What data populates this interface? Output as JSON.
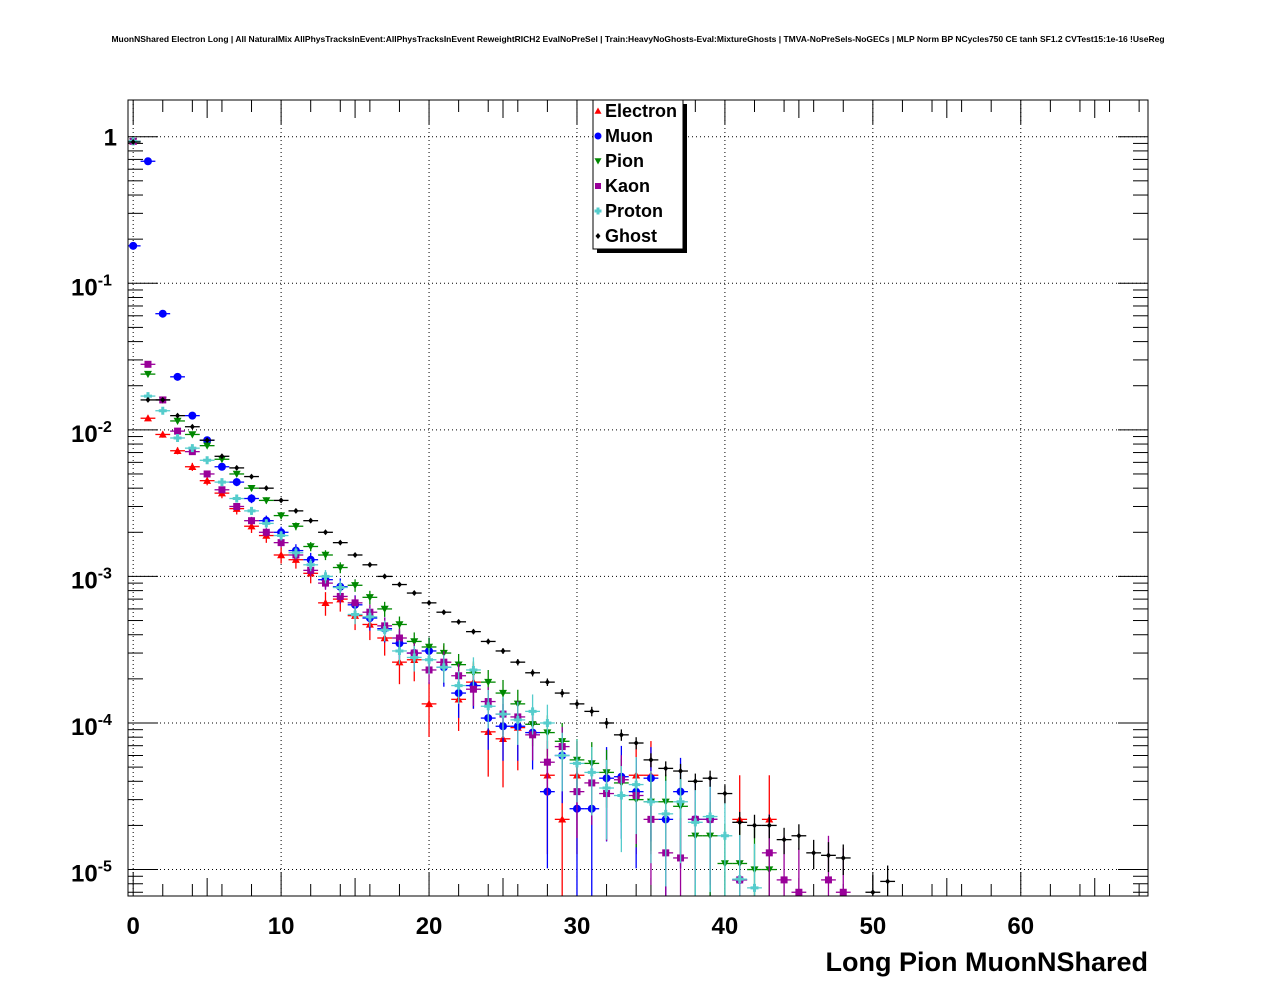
{
  "chart_data": {
    "type": "scatter",
    "title": "MuonNShared Electron Long | All NaturalMix AllPhysTracksInEvent:AllPhysTracksInEvent ReweightRICH2 EvalNoPreSel | Train:HeavyNoGhosts-Eval:MixtureGhosts | TMVA-NoPreSels-NoGECs | MLP Norm BP NCycles750 CE tanh SF1.2 CVTest15:1e-16 !UseReg",
    "xlabel": "Long Pion MuonNShared",
    "ylabel": "",
    "xlim": [
      -0.35,
      68.6
    ],
    "ylim": [
      6.6e-06,
      1.78
    ],
    "yscale": "log",
    "grid": true,
    "legend_placement": "top-center",
    "x_ticks": [
      {
        "v": 0,
        "label": "0"
      },
      {
        "v": 10,
        "label": "10"
      },
      {
        "v": 20,
        "label": "20"
      },
      {
        "v": 30,
        "label": "30"
      },
      {
        "v": 40,
        "label": "40"
      },
      {
        "v": 50,
        "label": "50"
      },
      {
        "v": 60,
        "label": "60"
      }
    ],
    "y_ticks": [
      {
        "v": 1,
        "base": "1",
        "exp": ""
      },
      {
        "v": 0.1,
        "base": "10",
        "exp": "-1"
      },
      {
        "v": 0.01,
        "base": "10",
        "exp": "-2"
      },
      {
        "v": 0.001,
        "base": "10",
        "exp": "-3"
      },
      {
        "v": 0.0001,
        "base": "10",
        "exp": "-4"
      },
      {
        "v": 1e-05,
        "base": "10",
        "exp": "-5"
      }
    ],
    "series": [
      {
        "name": "Electron",
        "color": "#ff0000",
        "marker": "triangle-up",
        "points": [
          [
            0,
            0.93
          ],
          [
            1,
            0.012
          ],
          [
            2,
            0.0093
          ],
          [
            3,
            0.0072
          ],
          [
            4,
            0.0056
          ],
          [
            5,
            0.0045
          ],
          [
            6,
            0.0037
          ],
          [
            7,
            0.0029
          ],
          [
            8,
            0.0022
          ],
          [
            9,
            0.0019
          ],
          [
            10,
            0.0014
          ],
          [
            11,
            0.0013
          ],
          [
            12,
            0.00105
          ],
          [
            13,
            0.00066
          ],
          [
            14,
            0.0007
          ],
          [
            15,
            0.00054
          ],
          [
            16,
            0.00047
          ],
          [
            17,
            0.00038
          ],
          [
            18,
            0.00026
          ],
          [
            19,
            0.00027
          ],
          [
            20,
            0.000135
          ],
          [
            21,
            0.00026
          ],
          [
            22,
            0.000145
          ],
          [
            23,
            0.00019
          ],
          [
            24,
            8.7e-05
          ],
          [
            25,
            7.8e-05
          ],
          [
            26,
            9.3e-05
          ],
          [
            28,
            4.4e-05
          ],
          [
            29,
            2.2e-05
          ],
          [
            30,
            4.4e-05
          ],
          [
            34,
            4.4e-05
          ],
          [
            35,
            4.4e-05
          ],
          [
            41,
            2.2e-05
          ],
          [
            43,
            2.2e-05
          ]
        ]
      },
      {
        "name": "Muon",
        "color": "#0000ff",
        "marker": "circle",
        "points": [
          [
            0,
            0.18
          ],
          [
            1,
            0.68
          ],
          [
            2,
            0.062
          ],
          [
            3,
            0.023
          ],
          [
            4,
            0.0125
          ],
          [
            5,
            0.0085
          ],
          [
            6,
            0.0056
          ],
          [
            7,
            0.0044
          ],
          [
            8,
            0.0034
          ],
          [
            9,
            0.0024
          ],
          [
            10,
            0.002
          ],
          [
            11,
            0.0015
          ],
          [
            12,
            0.0013
          ],
          [
            13,
            0.00095
          ],
          [
            14,
            0.00085
          ],
          [
            15,
            0.00064
          ],
          [
            16,
            0.00052
          ],
          [
            17,
            0.00044
          ],
          [
            18,
            0.00035
          ],
          [
            19,
            0.0003
          ],
          [
            20,
            0.00031
          ],
          [
            21,
            0.00024
          ],
          [
            22,
            0.00016
          ],
          [
            23,
            0.00018
          ],
          [
            24,
            0.000108
          ],
          [
            25,
            9.5e-05
          ],
          [
            26,
            9.5e-05
          ],
          [
            27,
            8.6e-05
          ],
          [
            28,
            3.4e-05
          ],
          [
            29,
            6e-05
          ],
          [
            30,
            2.6e-05
          ],
          [
            31,
            2.6e-05
          ],
          [
            32,
            4.2e-05
          ],
          [
            33,
            4.3e-05
          ],
          [
            34,
            3.4e-05
          ],
          [
            35,
            4.2e-05
          ],
          [
            36,
            2.2e-05
          ],
          [
            37,
            3.4e-05
          ],
          [
            38,
            2.2e-05
          ],
          [
            39,
            2.2e-05
          ],
          [
            41,
            8.5e-06
          ]
        ]
      },
      {
        "name": "Pion",
        "color": "#008800",
        "marker": "triangle-down",
        "points": [
          [
            0,
            0.93
          ],
          [
            1,
            0.024
          ],
          [
            2,
            0.016
          ],
          [
            3,
            0.0115
          ],
          [
            4,
            0.0093
          ],
          [
            5,
            0.0078
          ],
          [
            6,
            0.0063
          ],
          [
            7,
            0.005
          ],
          [
            8,
            0.004
          ],
          [
            9,
            0.0033
          ],
          [
            10,
            0.0026
          ],
          [
            11,
            0.0022
          ],
          [
            12,
            0.0016
          ],
          [
            13,
            0.0014
          ],
          [
            14,
            0.00115
          ],
          [
            15,
            0.00087
          ],
          [
            16,
            0.00072
          ],
          [
            17,
            0.0006
          ],
          [
            18,
            0.00047
          ],
          [
            19,
            0.00036
          ],
          [
            20,
            0.00033
          ],
          [
            21,
            0.0003
          ],
          [
            22,
            0.00025
          ],
          [
            23,
            0.00022
          ],
          [
            24,
            0.00019
          ],
          [
            25,
            0.00016
          ],
          [
            26,
            0.000135
          ],
          [
            27,
            9.8e-05
          ],
          [
            28,
            8.6e-05
          ],
          [
            29,
            7.5e-05
          ],
          [
            30,
            5.6e-05
          ],
          [
            31,
            5.3e-05
          ],
          [
            32,
            4.6e-05
          ],
          [
            33,
            3.9e-05
          ],
          [
            34,
            3e-05
          ],
          [
            35,
            2.9e-05
          ],
          [
            36,
            2.9e-05
          ],
          [
            37,
            2.7e-05
          ],
          [
            38,
            1.7e-05
          ],
          [
            39,
            1.7e-05
          ],
          [
            40,
            1.1e-05
          ],
          [
            41,
            1.1e-05
          ],
          [
            42,
            1e-05
          ],
          [
            43,
            1e-05
          ]
        ]
      },
      {
        "name": "Kaon",
        "color": "#990099",
        "marker": "square",
        "points": [
          [
            0,
            0.93
          ],
          [
            1,
            0.028
          ],
          [
            2,
            0.016
          ],
          [
            3,
            0.0098
          ],
          [
            4,
            0.0071
          ],
          [
            5,
            0.005
          ],
          [
            6,
            0.0039
          ],
          [
            7,
            0.003
          ],
          [
            8,
            0.0024
          ],
          [
            9,
            0.002
          ],
          [
            10,
            0.0017
          ],
          [
            11,
            0.0014
          ],
          [
            12,
            0.0011
          ],
          [
            13,
            0.0009
          ],
          [
            14,
            0.00073
          ],
          [
            15,
            0.00066
          ],
          [
            16,
            0.00057
          ],
          [
            17,
            0.00046
          ],
          [
            18,
            0.00038
          ],
          [
            19,
            0.0003
          ],
          [
            20,
            0.00023
          ],
          [
            21,
            0.00026
          ],
          [
            22,
            0.00021
          ],
          [
            23,
            0.00017
          ],
          [
            24,
            0.00014
          ],
          [
            25,
            0.000115
          ],
          [
            26,
            0.00011
          ],
          [
            27,
            8.3e-05
          ],
          [
            28,
            5.4e-05
          ],
          [
            29,
            6.9e-05
          ],
          [
            30,
            3.4e-05
          ],
          [
            31,
            3.9e-05
          ],
          [
            32,
            3.3e-05
          ],
          [
            33,
            4.1e-05
          ],
          [
            34,
            3.2e-05
          ],
          [
            35,
            2.2e-05
          ],
          [
            36,
            1.3e-05
          ],
          [
            37,
            1.2e-05
          ],
          [
            38,
            2.2e-05
          ],
          [
            39,
            2.2e-05
          ],
          [
            41,
            8.5e-06
          ],
          [
            43,
            1.3e-05
          ],
          [
            44,
            8.5e-06
          ],
          [
            45,
            7e-06
          ],
          [
            47,
            8.5e-06
          ],
          [
            48,
            7e-06
          ]
        ]
      },
      {
        "name": "Proton",
        "color": "#55cccc",
        "marker": "cross",
        "points": [
          [
            0,
            0.93
          ],
          [
            1,
            0.017
          ],
          [
            2,
            0.0135
          ],
          [
            3,
            0.0088
          ],
          [
            4,
            0.0075
          ],
          [
            5,
            0.0062
          ],
          [
            6,
            0.0044
          ],
          [
            7,
            0.0034
          ],
          [
            8,
            0.0028
          ],
          [
            9,
            0.0023
          ],
          [
            10,
            0.0019
          ],
          [
            11,
            0.00145
          ],
          [
            12,
            0.0012
          ],
          [
            13,
            0.001
          ],
          [
            14,
            0.00084
          ],
          [
            15,
            0.00055
          ],
          [
            16,
            0.00053
          ],
          [
            17,
            0.00043
          ],
          [
            18,
            0.00031
          ],
          [
            19,
            0.00028
          ],
          [
            20,
            0.00027
          ],
          [
            21,
            0.00024
          ],
          [
            22,
            0.00018
          ],
          [
            23,
            0.00023
          ],
          [
            24,
            0.00013
          ],
          [
            25,
            0.000115
          ],
          [
            26,
            0.000105
          ],
          [
            27,
            0.00012
          ],
          [
            28,
            0.0001
          ],
          [
            29,
            6e-05
          ],
          [
            30,
            5.3e-05
          ],
          [
            31,
            4.6e-05
          ],
          [
            32,
            3.6e-05
          ],
          [
            33,
            3.2e-05
          ],
          [
            34,
            3.8e-05
          ],
          [
            35,
            2.9e-05
          ],
          [
            36,
            2.4e-05
          ],
          [
            37,
            2.9e-05
          ],
          [
            38,
            2.1e-05
          ],
          [
            39,
            2.3e-05
          ],
          [
            40,
            1.7e-05
          ],
          [
            41,
            8.6e-06
          ],
          [
            42,
            7.5e-06
          ]
        ]
      },
      {
        "name": "Ghost",
        "color": "#000000",
        "marker": "diamond",
        "points": [
          [
            0,
            0.92
          ],
          [
            1,
            0.016
          ],
          [
            2,
            0.016
          ],
          [
            3,
            0.0125
          ],
          [
            4,
            0.0105
          ],
          [
            5,
            0.0085
          ],
          [
            6,
            0.0066
          ],
          [
            7,
            0.0055
          ],
          [
            8,
            0.0048
          ],
          [
            9,
            0.004
          ],
          [
            10,
            0.0033
          ],
          [
            11,
            0.0028
          ],
          [
            12,
            0.0024
          ],
          [
            13,
            0.002
          ],
          [
            14,
            0.0017
          ],
          [
            15,
            0.0014
          ],
          [
            16,
            0.0012
          ],
          [
            17,
            0.001
          ],
          [
            18,
            0.00088
          ],
          [
            19,
            0.00077
          ],
          [
            20,
            0.00066
          ],
          [
            21,
            0.00057
          ],
          [
            22,
            0.00049
          ],
          [
            23,
            0.00042
          ],
          [
            24,
            0.00036
          ],
          [
            25,
            0.00031
          ],
          [
            26,
            0.00026
          ],
          [
            27,
            0.00022
          ],
          [
            28,
            0.00019
          ],
          [
            29,
            0.00016
          ],
          [
            30,
            0.000135
          ],
          [
            31,
            0.00012
          ],
          [
            32,
            0.0001
          ],
          [
            33,
            8.3e-05
          ],
          [
            34,
            7.3e-05
          ],
          [
            35,
            5.6e-05
          ],
          [
            36,
            4.9e-05
          ],
          [
            37,
            4.7e-05
          ],
          [
            38,
            4e-05
          ],
          [
            39,
            4.2e-05
          ],
          [
            40,
            3.3e-05
          ],
          [
            41,
            2.1e-05
          ],
          [
            42,
            2e-05
          ],
          [
            43,
            2e-05
          ],
          [
            44,
            1.6e-05
          ],
          [
            45,
            1.7e-05
          ],
          [
            46,
            1.3e-05
          ],
          [
            47,
            1.25e-05
          ],
          [
            48,
            1.2e-05
          ],
          [
            50,
            7e-06
          ],
          [
            51,
            8.3e-06
          ]
        ]
      }
    ]
  }
}
